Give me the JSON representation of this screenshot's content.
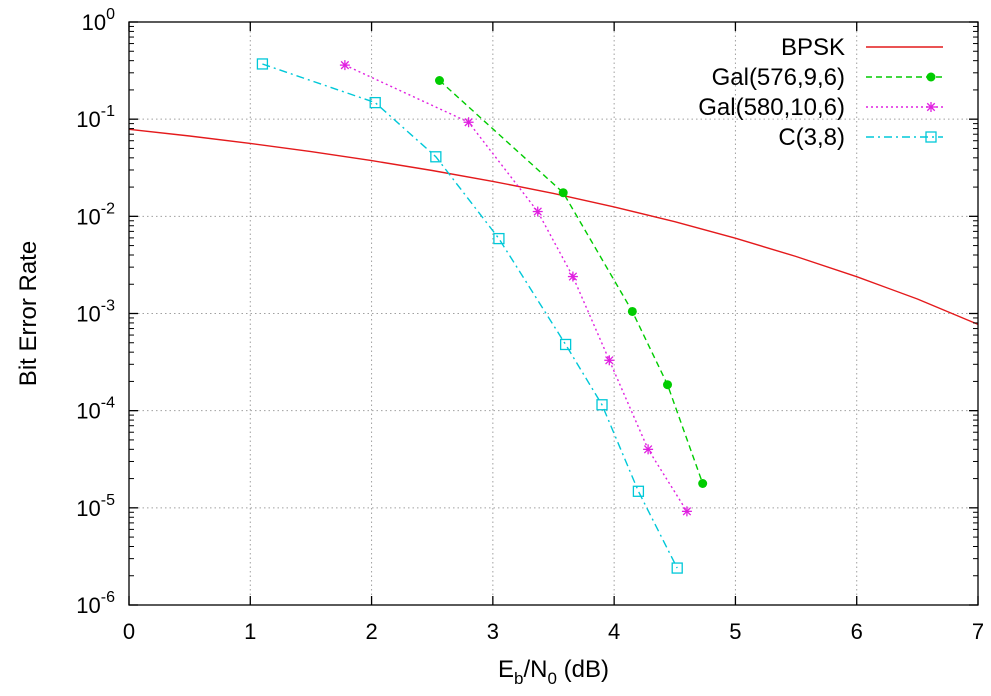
{
  "chart_data": {
    "type": "line",
    "title": "",
    "xlabel": {
      "main": "E",
      "sub1": "b",
      "mid": "/N",
      "sub2": "0",
      "tail": " (dB)"
    },
    "ylabel": "Bit Error Rate",
    "xlim": [
      0,
      7
    ],
    "ylim": [
      1e-06,
      1
    ],
    "yscale": "log",
    "grid": true,
    "legend_position": "top-right",
    "x_ticks": [
      "0",
      "1",
      "2",
      "3",
      "4",
      "5",
      "6",
      "7"
    ],
    "y_ticks": [
      {
        "base": "10",
        "exp": "0"
      },
      {
        "base": "10",
        "exp": "-1"
      },
      {
        "base": "10",
        "exp": "-2"
      },
      {
        "base": "10",
        "exp": "-3"
      },
      {
        "base": "10",
        "exp": "-4"
      },
      {
        "base": "10",
        "exp": "-5"
      },
      {
        "base": "10",
        "exp": "-6"
      }
    ],
    "series": [
      {
        "name": "BPSK",
        "color": "#e41a1c",
        "style": "solid",
        "marker": "none",
        "x": [
          0,
          0.5,
          1,
          1.5,
          2,
          2.5,
          3,
          3.5,
          4,
          4.5,
          5,
          5.5,
          6,
          6.5,
          7
        ],
        "y": [
          0.0786,
          0.0671,
          0.0563,
          0.0464,
          0.0375,
          0.0296,
          0.0229,
          0.0172,
          0.0125,
          0.00881,
          0.00595,
          0.00386,
          0.00239,
          0.00141,
          0.000773
        ]
      },
      {
        "name": "Gal(576,9,6)",
        "color": "#00cc00",
        "style": "dashed",
        "marker": "filled-circle",
        "x": [
          2.56,
          3.58,
          4.15,
          4.44,
          4.73
        ],
        "y": [
          0.25,
          0.0175,
          0.00105,
          0.000185,
          1.78e-05
        ]
      },
      {
        "name": "Gal(580,10,6)",
        "color": "#e020e0",
        "style": "dotted",
        "marker": "star",
        "x": [
          1.78,
          2.8,
          3.37,
          3.66,
          3.96,
          4.28,
          4.6
        ],
        "y": [
          0.36,
          0.093,
          0.0112,
          0.0024,
          0.00033,
          4e-05,
          9.2e-06
        ]
      },
      {
        "name": "C(3,8)",
        "color": "#00c8d8",
        "style": "dashdot",
        "marker": "open-square",
        "x": [
          1.1,
          2.03,
          2.53,
          3.05,
          3.6,
          3.9,
          4.2,
          4.52
        ],
        "y": [
          0.37,
          0.148,
          0.041,
          0.0059,
          0.00048,
          0.000115,
          1.48e-05,
          2.4e-06
        ]
      }
    ]
  }
}
